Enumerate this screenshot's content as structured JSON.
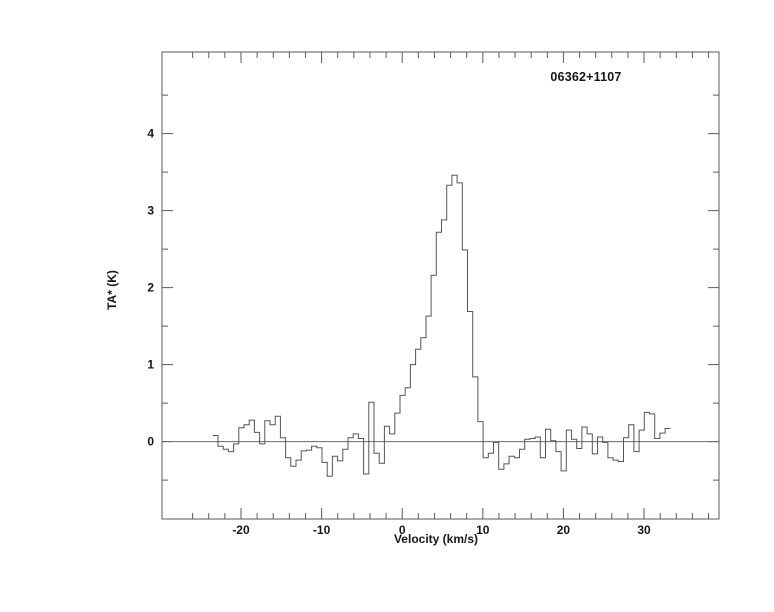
{
  "figure": {
    "title": "06362+1107",
    "xlabel": "Velocity (km/s)",
    "ylabel": "TA* (K)"
  },
  "chart_data": {
    "type": "line",
    "style": "histogram-step",
    "title": "06362+1107",
    "xlabel": "Velocity (km/s)",
    "ylabel": "TA* (K)",
    "xlim": [
      -29.8,
      39.3
    ],
    "ylim": [
      -1.005,
      5.06
    ],
    "x_major_ticks": [
      -20,
      -10,
      0,
      10,
      20,
      30
    ],
    "x_major_labels": [
      "-20",
      "-10",
      "0",
      "10",
      "20",
      "30"
    ],
    "x_minor_ticks": [
      -26,
      -24,
      -22,
      -18,
      -16,
      -14,
      -12,
      -8,
      -6,
      -4,
      -2,
      2,
      4,
      6,
      8,
      12,
      14,
      16,
      18,
      22,
      24,
      26,
      28,
      32,
      34,
      36,
      38
    ],
    "y_major_ticks": [
      0,
      1,
      2,
      3,
      4
    ],
    "y_major_labels": [
      "0",
      "1",
      "2",
      "3",
      "4"
    ],
    "y_minor_ticks": [
      -0.5,
      0.5,
      1.5,
      2.5,
      3.5,
      4.5
    ],
    "zero_line": true,
    "grid": false,
    "legend": null,
    "x_start": -23.5,
    "dx": 0.645,
    "peak": {
      "velocity": 6.0,
      "ta_peak": 3.46
    },
    "values": [
      0.08,
      -0.06,
      -0.1,
      -0.13,
      -0.03,
      0.18,
      0.22,
      0.28,
      0.12,
      -0.03,
      0.27,
      0.22,
      0.33,
      0.05,
      -0.21,
      -0.32,
      -0.24,
      -0.12,
      -0.11,
      -0.06,
      -0.08,
      -0.27,
      -0.45,
      -0.19,
      -0.25,
      -0.1,
      0.05,
      0.1,
      0.04,
      -0.42,
      0.51,
      -0.15,
      -0.28,
      0.2,
      0.1,
      0.37,
      0.6,
      0.7,
      1.0,
      1.2,
      1.35,
      1.63,
      2.16,
      2.72,
      2.88,
      3.33,
      3.46,
      3.36,
      2.49,
      1.69,
      0.84,
      0.26,
      -0.21,
      -0.15,
      -0.01,
      -0.36,
      -0.29,
      -0.19,
      -0.21,
      -0.1,
      0.03,
      0.04,
      0.06,
      -0.21,
      0.16,
      0.01,
      -0.13,
      -0.38,
      0.15,
      0.03,
      -0.09,
      0.19,
      0.1,
      -0.16,
      0.06,
      -0.01,
      -0.21,
      -0.24,
      -0.26,
      0.05,
      0.22,
      -0.13,
      0.15,
      0.38,
      0.36,
      0.04,
      0.11,
      0.17
    ],
    "colors": {
      "spectrum_line": "#555555",
      "frame": "#5a5a5a",
      "zero_line": "#6a6a6a",
      "text": "#161616"
    }
  }
}
